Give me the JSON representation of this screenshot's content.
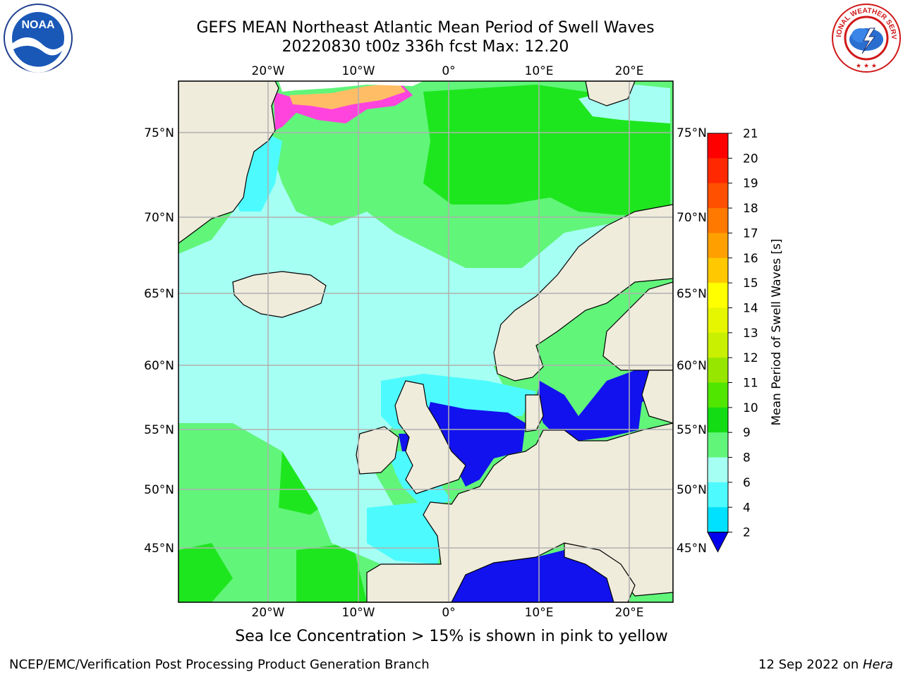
{
  "title": {
    "line1": "GEFS MEAN Northeast Atlantic Mean Period of Swell Waves",
    "line2": "20220830 t00z 336h fcst   Max: 12.20"
  },
  "logos": {
    "noaa_text": "NOAA",
    "nws_text": "NATIONAL WEATHER SERVICE"
  },
  "map": {
    "lon_labels": [
      "20°W",
      "10°W",
      "0°",
      "10°E",
      "20°E"
    ],
    "lat_labels": [
      "75°N",
      "70°N",
      "65°N",
      "60°N",
      "55°N",
      "50°N",
      "45°N"
    ],
    "colors": {
      "land": "#efecdc",
      "ocean_main": "#61f57a",
      "ocean_light": "#a6fff3",
      "ocean_cyan": "#4dfbff",
      "ocean_darkgreen": "#1ee61e",
      "ocean_blue": "#1212ee",
      "grid": "#b0b0b0",
      "ice_pink": "#ff44dd",
      "ice_orange": "#ffbe66"
    }
  },
  "colorbar": {
    "label": "Mean Period of Swell Waves [s]",
    "ticks": [
      "21",
      "20",
      "19",
      "18",
      "17",
      "16",
      "15",
      "14",
      "13",
      "12",
      "11",
      "10",
      "9",
      "8",
      "6",
      "4",
      "2"
    ],
    "colors": [
      "#ff0000",
      "#ff2800",
      "#ff5000",
      "#ff7800",
      "#ffa000",
      "#ffc800",
      "#ffff00",
      "#e6f500",
      "#c8f000",
      "#96e600",
      "#50e600",
      "#14dc14",
      "#61f57a",
      "#a6fff3",
      "#4dfbff",
      "#00e0ff",
      "#0073ff"
    ],
    "extend_color": "#0000ee"
  },
  "note": "Sea Ice Concentration > 15% is shown in pink to yellow",
  "credits": {
    "left": "NCEP/EMC/Verification Post Processing Product Generation Branch",
    "right_date": "12 Sep 2022 on ",
    "right_host": "Hera"
  }
}
